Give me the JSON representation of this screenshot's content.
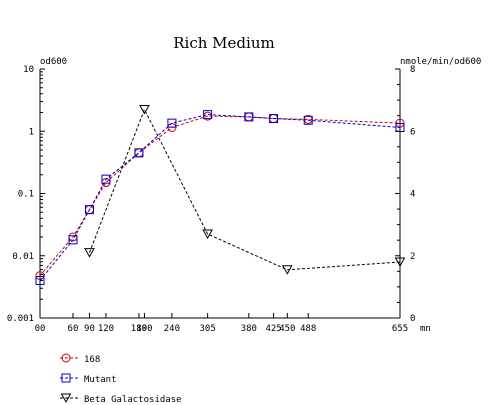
{
  "chart_data": {
    "type": "line",
    "title": "Rich Medium",
    "ylabel_left": "od600",
    "ylabel_right": "nmole/min/od600",
    "xlabel": "mn",
    "x_ticks": [
      0,
      60,
      90,
      120,
      180,
      190,
      240,
      305,
      380,
      425,
      450,
      488,
      655
    ],
    "x_tick_labels": [
      "00",
      "60",
      "90",
      "120",
      "180",
      "190",
      "240",
      "305",
      "380",
      "425",
      "450",
      "488",
      "655"
    ],
    "xlim": [
      0,
      655
    ],
    "ylim_left": [
      0.001,
      10
    ],
    "yscale_left": "log",
    "y_tick_labels_left": [
      "0.001",
      "0.01",
      "0.1",
      "1",
      "10"
    ],
    "ylim_right": [
      0,
      8
    ],
    "y_tick_labels_right": [
      "0",
      "2",
      "4",
      "6",
      "8"
    ],
    "grid": false,
    "legend_position": "bottom-left",
    "series": [
      {
        "name": "168",
        "axis": "left",
        "color": "#cc0000",
        "marker": "circle",
        "x": [
          0,
          60,
          90,
          120,
          180,
          240,
          305,
          380,
          425,
          488,
          655
        ],
        "y": [
          0.0048,
          0.02,
          0.055,
          0.15,
          0.45,
          1.15,
          1.75,
          1.7,
          1.6,
          1.55,
          1.35
        ]
      },
      {
        "name": "Mutant",
        "axis": "left",
        "color": "#0000cc",
        "marker": "square",
        "x": [
          0,
          60,
          90,
          120,
          180,
          240,
          305,
          380,
          425,
          488,
          655
        ],
        "y": [
          0.004,
          0.018,
          0.055,
          0.17,
          0.45,
          1.35,
          1.85,
          1.7,
          1.6,
          1.5,
          1.15
        ]
      },
      {
        "name": "Beta Galactosidase",
        "axis": "right",
        "color": "#000000",
        "marker": "triangle-down",
        "x": [
          90,
          190,
          305,
          450,
          655
        ],
        "y": [
          2.1,
          6.7,
          2.7,
          1.55,
          1.8
        ]
      }
    ]
  }
}
